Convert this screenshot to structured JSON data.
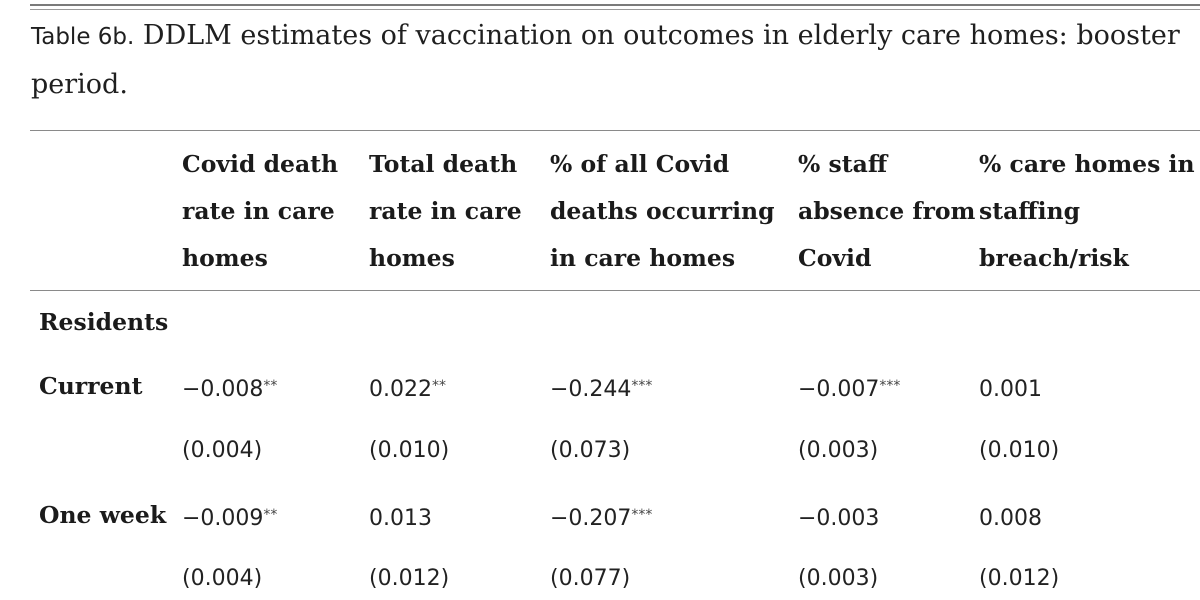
{
  "caption": {
    "label": "Table 6b.",
    "text": " DDLM estimates of vaccination on outcomes in elderly care homes: booster period."
  },
  "columns": [
    {
      "lines": [
        "Covid death",
        "rate in care",
        "homes"
      ]
    },
    {
      "lines": [
        "Total death",
        "rate in care",
        "homes"
      ]
    },
    {
      "lines": [
        "% of all Covid",
        "deaths occurring",
        "in care homes"
      ]
    },
    {
      "lines": [
        "% staff",
        "absence from",
        "Covid"
      ]
    },
    {
      "lines": [
        "% care homes in",
        "staffing",
        "breach/risk"
      ]
    }
  ],
  "section_label": "Residents",
  "rows": [
    {
      "label": "Current",
      "estimates": [
        {
          "value": "−0.008",
          "stars": "**"
        },
        {
          "value": "0.022",
          "stars": "**"
        },
        {
          "value": "−0.244",
          "stars": "***"
        },
        {
          "value": "−0.007",
          "stars": "***"
        },
        {
          "value": "0.001",
          "stars": ""
        }
      ],
      "se": [
        "(0.004)",
        "(0.010)",
        "(0.073)",
        "(0.003)",
        "(0.010)"
      ]
    },
    {
      "label": "One week",
      "estimates": [
        {
          "value": "−0.009",
          "stars": "**"
        },
        {
          "value": "0.013",
          "stars": ""
        },
        {
          "value": "−0.207",
          "stars": "***"
        },
        {
          "value": "−0.003",
          "stars": ""
        },
        {
          "value": "0.008",
          "stars": ""
        }
      ],
      "se": [
        "(0.004)",
        "(0.012)",
        "(0.077)",
        "(0.003)",
        "(0.012)"
      ]
    }
  ]
}
